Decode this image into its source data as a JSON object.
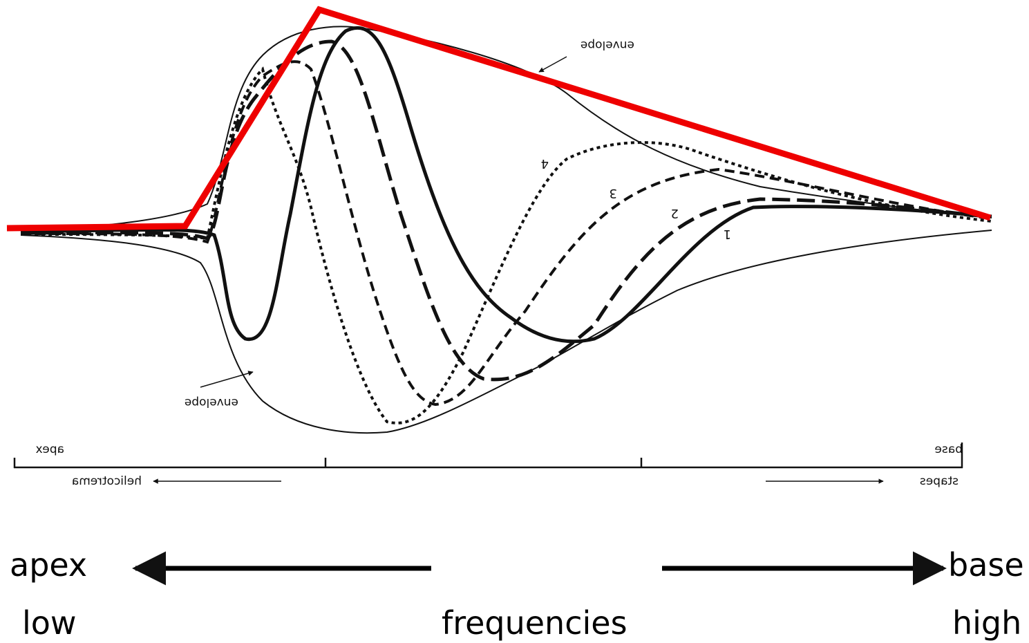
{
  "figure": {
    "envelope_top_label": "envelope",
    "envelope_bottom_label": "envelope",
    "wave_numbers": [
      "1",
      "2",
      "3",
      "4"
    ],
    "apex_small": "apex",
    "base_small": "base",
    "helicotrema": "helicotrema",
    "stapes": "stapes"
  },
  "legend": {
    "apex": "apex",
    "base": "base",
    "low": "low",
    "frequencies": "frequencies",
    "high": "high"
  },
  "colors": {
    "curves": "#111111",
    "overlay": "#ee0000"
  }
}
